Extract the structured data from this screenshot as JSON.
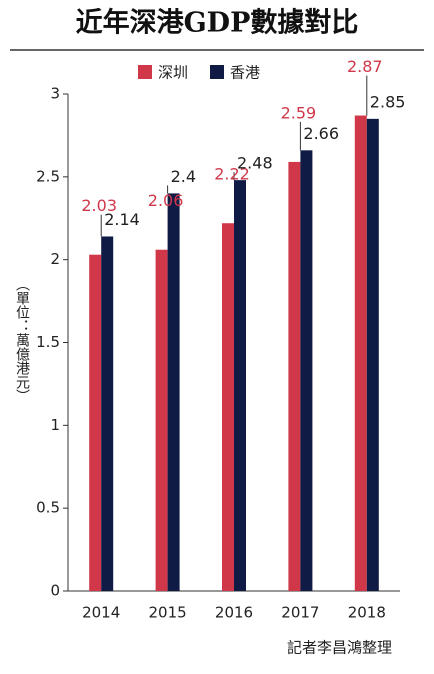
{
  "chart_data": {
    "type": "bar",
    "title": "近年深港GDP數據對比",
    "y_label": "（單位：萬億港元）",
    "note": "記者李昌鴻整理",
    "categories": [
      "2014",
      "2015",
      "2016",
      "2017",
      "2018"
    ],
    "series": [
      {
        "name": "深圳",
        "color": "#d0384a",
        "values": [
          2.03,
          2.06,
          2.22,
          2.59,
          2.87
        ]
      },
      {
        "name": "香港",
        "color": "#0f1a45",
        "values": [
          2.14,
          2.4,
          2.48,
          2.66,
          2.85
        ]
      }
    ],
    "ylim": [
      0,
      3
    ],
    "yticks": [
      0,
      0.5,
      1,
      1.5,
      2,
      2.5,
      3
    ],
    "grid": false
  }
}
